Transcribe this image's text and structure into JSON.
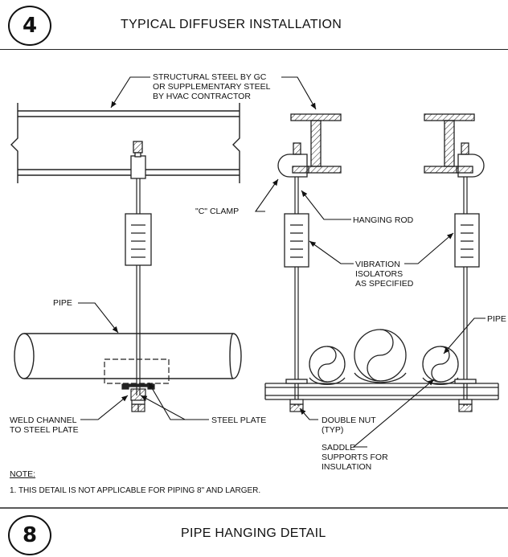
{
  "header": {
    "number": "4",
    "title": "TYPICAL DIFFUSER INSTALLATION"
  },
  "footer": {
    "number": "8",
    "title": "PIPE HANGING DETAIL"
  },
  "labels": {
    "structural_steel": [
      "STRUCTURAL STEEL BY GC",
      "OR SUPPLEMENTARY STEEL",
      "BY HVAC CONTRACTOR"
    ],
    "c_clamp": "\"C\" CLAMP",
    "hanging_rod": "HANGING ROD",
    "vibration_isolators": [
      "VIBRATION",
      "ISOLATORS",
      "AS SPECIFIED"
    ],
    "pipe_left": "PIPE",
    "pipe_right": "PIPE",
    "weld_channel": [
      "WELD CHANNEL",
      "TO STEEL PLATE"
    ],
    "steel_plate": "STEEL PLATE",
    "double_nut": [
      "DOUBLE NUT",
      "(TYP)"
    ],
    "saddle": [
      "SADDLE",
      "SUPPORTS FOR",
      "INSULATION"
    ]
  },
  "note": {
    "heading": "NOTE:",
    "items": [
      "1.  THIS DETAIL IS NOT APPLICABLE FOR PIPING 8\" AND LARGER."
    ]
  }
}
